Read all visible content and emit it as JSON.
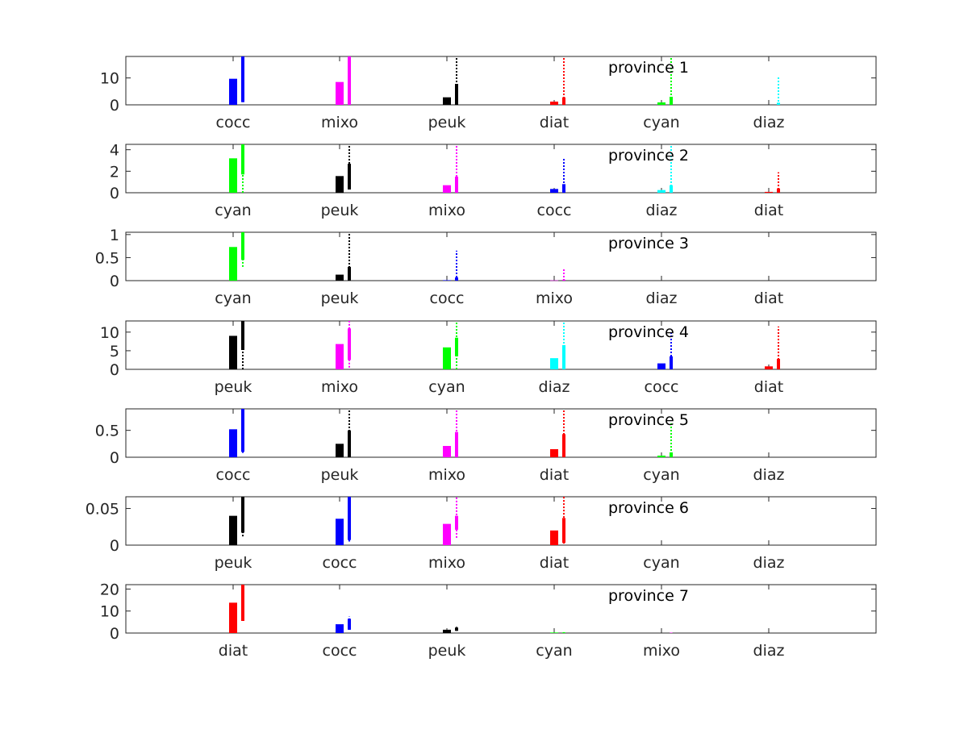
{
  "colors": {
    "cocc": "#0000ff",
    "mixo": "#ff00ff",
    "peuk": "#000000",
    "diat": "#ff0000",
    "cyan": "#00ff00",
    "diaz": "#00ffff"
  },
  "chart_data": [
    {
      "type": "bar",
      "title": "province 1",
      "ylim": [
        0,
        18
      ],
      "yticks": [
        0,
        10
      ],
      "categories": [
        "cocc",
        "mixo",
        "peuk",
        "diat",
        "cyan",
        "diaz"
      ],
      "values": [
        9.7,
        8.5,
        2.8,
        1.2,
        0.9,
        0.0
      ],
      "ranges": [
        {
          "low": 1.0,
          "q1": 1.0,
          "q3": 18.0,
          "high": 18.0
        },
        {
          "low": 0.0,
          "q1": 0.0,
          "q3": 18.0,
          "high": 18.0
        },
        {
          "low": 0.0,
          "q1": 0.0,
          "q3": 7.8,
          "high": 18.0
        },
        {
          "low": 0.0,
          "q1": 0.0,
          "q3": 2.8,
          "high": 18.0
        },
        {
          "low": 0.0,
          "q1": 0.0,
          "q3": 3.0,
          "high": 18.0
        },
        {
          "low": 0.0,
          "q1": 0.0,
          "q3": 0.8,
          "high": 10.3
        }
      ]
    },
    {
      "type": "bar",
      "title": "province 2",
      "ylim": [
        0,
        4.5
      ],
      "yticks": [
        0,
        2,
        4
      ],
      "categories": [
        "cyan",
        "peuk",
        "mixo",
        "cocc",
        "diaz",
        "diat"
      ],
      "values": [
        3.2,
        1.55,
        0.7,
        0.35,
        0.25,
        0.08
      ],
      "ranges": [
        {
          "low": 0.0,
          "q1": 1.7,
          "q3": 4.5,
          "high": 4.5
        },
        {
          "low": 0.3,
          "q1": 0.3,
          "q3": 2.7,
          "high": 4.4
        },
        {
          "low": 0.0,
          "q1": 0.0,
          "q3": 1.5,
          "high": 4.5
        },
        {
          "low": 0.0,
          "q1": 0.0,
          "q3": 0.8,
          "high": 3.2
        },
        {
          "low": 0.0,
          "q1": 0.0,
          "q3": 0.7,
          "high": 4.5
        },
        {
          "low": 0.0,
          "q1": 0.0,
          "q3": 0.4,
          "high": 1.9
        }
      ]
    },
    {
      "type": "bar",
      "title": "province 3",
      "ylim": [
        0,
        1.05
      ],
      "yticks": [
        0,
        0.5,
        1
      ],
      "categories": [
        "cyan",
        "peuk",
        "cocc",
        "mixo",
        "diaz",
        "diat"
      ],
      "values": [
        0.73,
        0.13,
        0.01,
        0.005,
        0.0,
        0.0
      ],
      "ranges": [
        {
          "low": 0.3,
          "q1": 0.45,
          "q3": 1.05,
          "high": 1.05
        },
        {
          "low": 0.0,
          "q1": 0.0,
          "q3": 0.3,
          "high": 1.05
        },
        {
          "low": 0.0,
          "q1": 0.0,
          "q3": 0.07,
          "high": 0.65
        },
        {
          "low": 0.0,
          "q1": 0.0,
          "q3": 0.02,
          "high": 0.25
        },
        {
          "low": 0.0,
          "q1": 0.0,
          "q3": 0.0,
          "high": 0.0
        },
        {
          "low": 0.0,
          "q1": 0.0,
          "q3": 0.0,
          "high": 0.0
        }
      ]
    },
    {
      "type": "bar",
      "title": "province 4",
      "ylim": [
        0,
        13
      ],
      "yticks": [
        0,
        5,
        10
      ],
      "categories": [
        "peuk",
        "mixo",
        "cyan",
        "diaz",
        "cocc",
        "diat"
      ],
      "values": [
        9.0,
        6.8,
        5.9,
        3.0,
        1.6,
        0.8
      ],
      "ranges": [
        {
          "low": 0.0,
          "q1": 5.2,
          "q3": 13.0,
          "high": 13.0
        },
        {
          "low": 0.5,
          "q1": 2.5,
          "q3": 11.0,
          "high": 13.0
        },
        {
          "low": 0.0,
          "q1": 3.5,
          "q3": 8.5,
          "high": 13.0
        },
        {
          "low": 0.0,
          "q1": 0.0,
          "q3": 6.5,
          "high": 13.0
        },
        {
          "low": 0.0,
          "q1": 0.0,
          "q3": 3.5,
          "high": 9.8
        },
        {
          "low": 0.0,
          "q1": 0.0,
          "q3": 2.8,
          "high": 11.5
        }
      ]
    },
    {
      "type": "bar",
      "title": "province 5",
      "ylim": [
        0,
        0.9
      ],
      "yticks": [
        0,
        0.5
      ],
      "categories": [
        "cocc",
        "peuk",
        "mixo",
        "diat",
        "cyan",
        "diaz"
      ],
      "values": [
        0.52,
        0.25,
        0.21,
        0.15,
        0.03,
        0.0
      ],
      "ranges": [
        {
          "low": 0.08,
          "q1": 0.1,
          "q3": 0.9,
          "high": 0.9
        },
        {
          "low": 0.0,
          "q1": 0.0,
          "q3": 0.5,
          "high": 0.9
        },
        {
          "low": 0.0,
          "q1": 0.0,
          "q3": 0.47,
          "high": 0.9
        },
        {
          "low": 0.0,
          "q1": 0.0,
          "q3": 0.43,
          "high": 0.9
        },
        {
          "low": 0.0,
          "q1": 0.0,
          "q3": 0.09,
          "high": 0.65
        },
        {
          "low": 0.0,
          "q1": 0.0,
          "q3": 0.0,
          "high": 0.0
        }
      ]
    },
    {
      "type": "bar",
      "title": "province 6",
      "ylim": [
        0,
        0.066
      ],
      "yticks": [
        0,
        0.05
      ],
      "categories": [
        "peuk",
        "cocc",
        "mixo",
        "diat",
        "cyan",
        "diaz"
      ],
      "values": [
        0.04,
        0.036,
        0.029,
        0.02,
        0.0,
        0.0
      ],
      "ranges": [
        {
          "low": 0.012,
          "q1": 0.017,
          "q3": 0.066,
          "high": 0.066
        },
        {
          "low": 0.005,
          "q1": 0.007,
          "q3": 0.066,
          "high": 0.066
        },
        {
          "low": 0.01,
          "q1": 0.021,
          "q3": 0.04,
          "high": 0.066
        },
        {
          "low": 0.002,
          "q1": 0.003,
          "q3": 0.037,
          "high": 0.066
        },
        {
          "low": 0.0,
          "q1": 0.0,
          "q3": 0.0,
          "high": 0.0
        },
        {
          "low": 0.0,
          "q1": 0.0,
          "q3": 0.0,
          "high": 0.0
        }
      ]
    },
    {
      "type": "bar",
      "title": "province 7",
      "ylim": [
        0,
        22
      ],
      "yticks": [
        0,
        10,
        20
      ],
      "categories": [
        "diat",
        "cocc",
        "peuk",
        "cyan",
        "mixo",
        "diaz"
      ],
      "values": [
        13.8,
        4.0,
        1.5,
        0.25,
        0.05,
        0.0
      ],
      "ranges": [
        {
          "low": 5.5,
          "q1": 5.5,
          "q3": 22.0,
          "high": 22.0
        },
        {
          "low": 1.5,
          "q1": 1.5,
          "q3": 6.5,
          "high": 7.5
        },
        {
          "low": 1.0,
          "q1": 1.0,
          "q3": 2.5,
          "high": 2.8
        },
        {
          "low": 0.0,
          "q1": 0.0,
          "q3": 0.3,
          "high": 0.4
        },
        {
          "low": 0.0,
          "q1": 0.0,
          "q3": 0.1,
          "high": 0.2
        },
        {
          "low": 0.0,
          "q1": 0.0,
          "q3": 0.0,
          "high": 0.0
        }
      ]
    }
  ]
}
